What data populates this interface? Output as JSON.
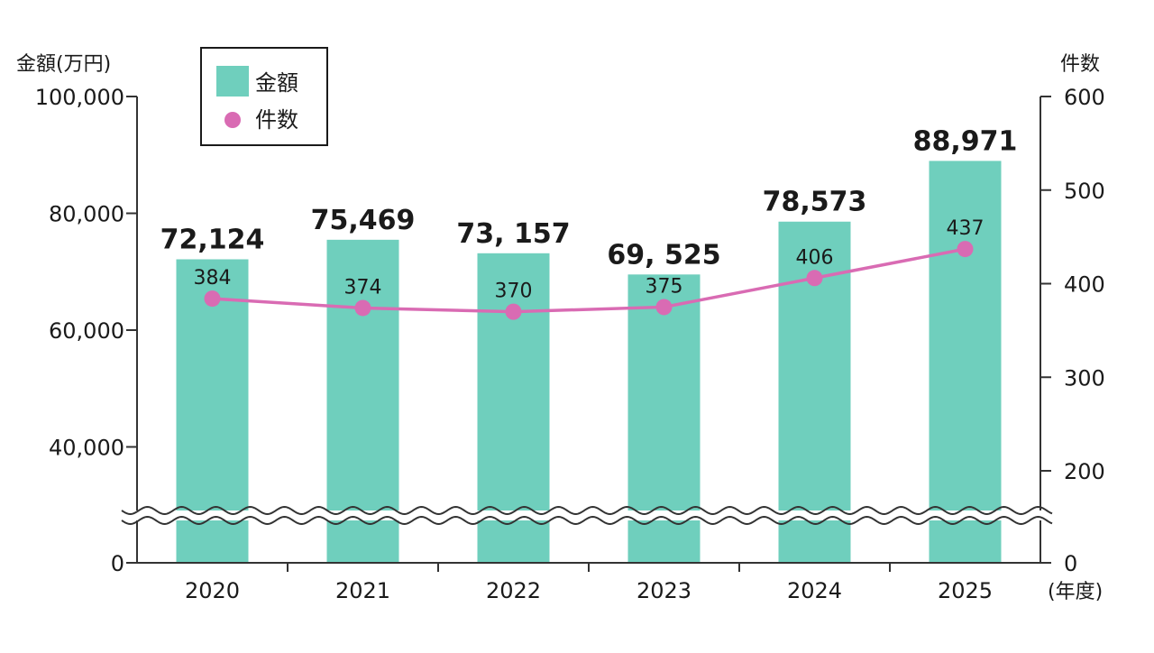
{
  "chart_data": {
    "type": "bar",
    "categories": [
      "2020",
      "2021",
      "2022",
      "2023",
      "2024",
      "2025"
    ],
    "series": [
      {
        "name": "金額",
        "axis": "left",
        "kind": "bar",
        "values": [
          72124,
          75469,
          73157,
          69525,
          78573,
          88971
        ],
        "value_labels": [
          "72,124",
          "75,469",
          "73, 157",
          "69, 525",
          "78,573",
          "88,971"
        ]
      },
      {
        "name": "件数",
        "axis": "right",
        "kind": "line",
        "values": [
          384,
          374,
          370,
          375,
          406,
          437
        ],
        "value_labels": [
          "384",
          "374",
          "370",
          "375",
          "406",
          "437"
        ]
      }
    ],
    "left_axis": {
      "label": "金額(万円)",
      "ticks": [
        "100,000",
        "80,000",
        "60,000",
        "40,000",
        "0"
      ],
      "tick_values": [
        100000,
        80000,
        60000,
        40000,
        0
      ],
      "broken": true
    },
    "right_axis": {
      "label": "件数",
      "ticks": [
        "600",
        "500",
        "400",
        "300",
        "200",
        "0"
      ],
      "tick_values": [
        600,
        500,
        400,
        300,
        200,
        0
      ],
      "broken": true
    },
    "xlabel": "(年度)",
    "legend_position": "top-left",
    "colors": {
      "bar": "#6fcfbd",
      "line": "#d96bb3",
      "axis": "#333333"
    }
  }
}
